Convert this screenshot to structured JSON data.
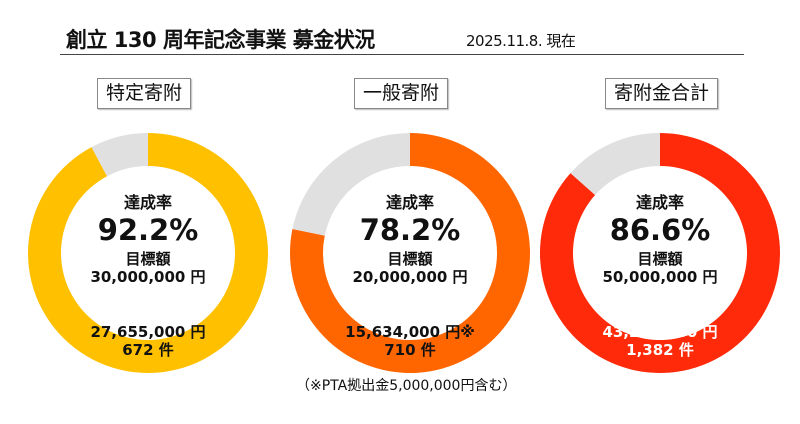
{
  "header": {
    "title": "創立 130 周年記念事業  募金状況",
    "date": "2025.11.8. 現在"
  },
  "chart_data": [
    {
      "type": "pie",
      "title": "特定寄附",
      "rate_label": "達成率",
      "rate": 92.2,
      "rate_text": "92.2%",
      "target_label": "目標額",
      "target_text": "30,000,000 円",
      "amount_text": "27,655,000 円",
      "count_text": "672 件",
      "color": "#FFC000",
      "remainder_color": "#E0E0E0",
      "text_color": "#111111"
    },
    {
      "type": "pie",
      "title": "一般寄附",
      "rate_label": "達成率",
      "rate": 78.2,
      "rate_text": "78.2%",
      "target_label": "目標額",
      "target_text": "20,000,000 円",
      "amount_text": "15,634,000 円※",
      "count_text": "710 件",
      "color": "#FF6600",
      "remainder_color": "#E0E0E0",
      "text_color": "#111111"
    },
    {
      "type": "pie",
      "title": "寄附金合計",
      "rate_label": "達成率",
      "rate": 86.6,
      "rate_text": "86.6%",
      "target_label": "目標額",
      "target_text": "50,000,000 円",
      "amount_text": "43,289,000 円",
      "count_text": "1,382 件",
      "color": "#FF2A0A",
      "remainder_color": "#E0E0E0",
      "text_color": "#FFFFFF"
    }
  ],
  "note": "（※PTA拠出金5,000,000円含む）"
}
